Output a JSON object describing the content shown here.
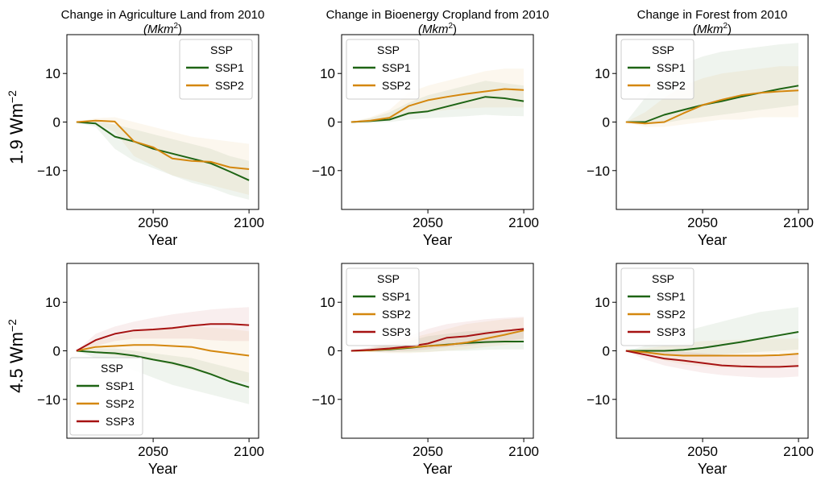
{
  "colors": {
    "SSP1": "#1e6414",
    "SSP2": "#d4870e",
    "SSP3": "#a61212"
  },
  "row_labels": [
    {
      "base": "1.9 Wm",
      "sup": "−2"
    },
    {
      "base": "4.5 Wm",
      "sup": "−2"
    }
  ],
  "chart_data": [
    {
      "type": "line",
      "title": "Change in Agriculture Land from 2010",
      "title_unit": {
        "base": "(Mkm",
        "sup": "2",
        "tail": ")"
      },
      "xlabel": "Year",
      "ylabel": "",
      "xlim": [
        2005,
        2105
      ],
      "ylim": [
        -18,
        18
      ],
      "xticks": [
        2050,
        2100
      ],
      "yticks": [
        10,
        0,
        -10
      ],
      "legend": {
        "title": "SSP",
        "position": "upper-right"
      },
      "x": [
        2010,
        2020,
        2030,
        2040,
        2050,
        2060,
        2070,
        2080,
        2090,
        2100
      ],
      "series": [
        {
          "name": "SSP1",
          "values": [
            0,
            -0.3,
            -3.0,
            -4.0,
            -5.5,
            -6.5,
            -7.5,
            -8.5,
            -10.2,
            -12.0
          ],
          "band": {
            "upper": [
              0,
              0.2,
              -0.5,
              -1.5,
              -2.5,
              -3.5,
              -4.5,
              -5.5,
              -7.0,
              -8.0
            ],
            "lower": [
              0,
              -1.0,
              -5.5,
              -8.0,
              -9.5,
              -11.0,
              -12.5,
              -13.5,
              -15.0,
              -16.0
            ]
          }
        },
        {
          "name": "SSP2",
          "values": [
            0,
            0.3,
            0.1,
            -4.0,
            -5.2,
            -7.5,
            -8.0,
            -8.2,
            -9.3,
            -9.7
          ],
          "band": {
            "upper": [
              0,
              0.8,
              1.0,
              0.0,
              -1.0,
              -2.0,
              -3.0,
              -3.5,
              -4.0,
              -4.5
            ],
            "lower": [
              0,
              -0.3,
              -2.0,
              -7.0,
              -9.0,
              -11.0,
              -12.0,
              -13.0,
              -14.0,
              -15.0
            ]
          }
        }
      ]
    },
    {
      "type": "line",
      "title": "Change in Bioenergy Cropland from 2010",
      "title_unit": {
        "base": "(Mkm",
        "sup": "2",
        "tail": ")"
      },
      "xlabel": "Year",
      "ylabel": "",
      "xlim": [
        2005,
        2105
      ],
      "ylim": [
        -18,
        18
      ],
      "xticks": [
        2050,
        2100
      ],
      "yticks": [
        10,
        0,
        -10
      ],
      "legend": {
        "title": "SSP",
        "position": "upper-left"
      },
      "x": [
        2010,
        2020,
        2030,
        2040,
        2050,
        2060,
        2070,
        2080,
        2090,
        2100
      ],
      "series": [
        {
          "name": "SSP1",
          "values": [
            0,
            0.2,
            0.5,
            1.8,
            2.2,
            3.2,
            4.2,
            5.2,
            4.9,
            4.3
          ],
          "band": {
            "upper": [
              0,
              0.8,
              2.0,
              4.0,
              5.5,
              6.5,
              7.5,
              8.5,
              8.0,
              7.5
            ],
            "lower": [
              0,
              -0.2,
              0.0,
              0.5,
              0.8,
              1.0,
              1.2,
              1.5,
              1.3,
              1.2
            ]
          }
        },
        {
          "name": "SSP2",
          "values": [
            0,
            0.3,
            0.9,
            3.3,
            4.5,
            5.2,
            5.8,
            6.3,
            6.8,
            6.6
          ],
          "band": {
            "upper": [
              0,
              1.0,
              2.5,
              6.0,
              7.5,
              8.5,
              9.5,
              10.5,
              11.0,
              11.0
            ],
            "lower": [
              0,
              0.0,
              0.3,
              1.5,
              2.0,
              2.5,
              2.8,
              3.0,
              3.0,
              3.0
            ]
          }
        }
      ]
    },
    {
      "type": "line",
      "title": "Change in Forest from 2010",
      "title_unit": {
        "base": "(Mkm",
        "sup": "2",
        "tail": ")"
      },
      "xlabel": "Year",
      "ylabel": "",
      "xlim": [
        2005,
        2105
      ],
      "ylim": [
        -18,
        18
      ],
      "xticks": [
        2050,
        2100
      ],
      "yticks": [
        10,
        0,
        -10
      ],
      "legend": {
        "title": "SSP",
        "position": "upper-left"
      },
      "x": [
        2010,
        2020,
        2030,
        2040,
        2050,
        2060,
        2070,
        2080,
        2090,
        2100
      ],
      "series": [
        {
          "name": "SSP1",
          "values": [
            0,
            0.0,
            1.5,
            2.5,
            3.5,
            4.3,
            5.2,
            6.0,
            6.8,
            7.5
          ],
          "band": {
            "upper": [
              0,
              5.0,
              10.0,
              12.0,
              13.5,
              14.5,
              15.0,
              15.5,
              16.0,
              16.3
            ],
            "lower": [
              0,
              -0.5,
              -0.2,
              0.5,
              1.0,
              1.5,
              2.0,
              2.5,
              3.0,
              3.5
            ]
          }
        },
        {
          "name": "SSP2",
          "values": [
            0,
            -0.3,
            0.0,
            1.8,
            3.5,
            4.6,
            5.5,
            6.0,
            6.3,
            6.5
          ],
          "band": {
            "upper": [
              0,
              2.0,
              5.0,
              7.5,
              9.0,
              10.0,
              10.5,
              11.0,
              11.5,
              11.5
            ],
            "lower": [
              0,
              -1.0,
              -1.0,
              -0.5,
              0.0,
              0.5,
              0.5,
              1.0,
              1.0,
              1.0
            ]
          }
        }
      ]
    },
    {
      "type": "line",
      "title": "",
      "xlabel": "Year",
      "ylabel": "",
      "xlim": [
        2005,
        2105
      ],
      "ylim": [
        -18,
        18
      ],
      "xticks": [
        2050,
        2100
      ],
      "yticks": [
        10,
        0,
        -10
      ],
      "legend": {
        "title": "SSP",
        "position": "lower-left"
      },
      "x": [
        2010,
        2020,
        2030,
        2040,
        2050,
        2060,
        2070,
        2080,
        2090,
        2100
      ],
      "series": [
        {
          "name": "SSP1",
          "values": [
            0,
            -0.3,
            -0.5,
            -1.0,
            -1.8,
            -2.5,
            -3.5,
            -4.8,
            -6.3,
            -7.5
          ],
          "band": {
            "upper": [
              0,
              0.5,
              0.5,
              0.0,
              -0.5,
              -1.0,
              -1.5,
              -2.5,
              -3.5,
              -4.5
            ],
            "lower": [
              0,
              -1.5,
              -2.5,
              -4.0,
              -5.5,
              -7.0,
              -8.0,
              -9.0,
              -10.0,
              -11.0
            ]
          }
        },
        {
          "name": "SSP2",
          "values": [
            0,
            0.8,
            1.0,
            1.2,
            1.2,
            1.0,
            0.8,
            0.0,
            -0.5,
            -1.0
          ],
          "band": {
            "upper": [
              0,
              2.0,
              3.0,
              4.0,
              4.5,
              5.0,
              5.0,
              4.8,
              4.5,
              4.0
            ],
            "lower": [
              0,
              -0.5,
              -1.0,
              -1.5,
              -2.0,
              -3.0,
              -4.0,
              -5.0,
              -6.0,
              -6.5
            ]
          }
        },
        {
          "name": "SSP3",
          "values": [
            0,
            2.2,
            3.5,
            4.2,
            4.4,
            4.7,
            5.2,
            5.5,
            5.5,
            5.3
          ],
          "band": {
            "upper": [
              0,
              3.5,
              5.0,
              6.0,
              6.8,
              7.5,
              8.0,
              8.5,
              8.8,
              9.0
            ],
            "lower": [
              0,
              1.0,
              2.0,
              2.5,
              2.5,
              2.5,
              2.5,
              2.2,
              2.0,
              2.0
            ]
          }
        }
      ]
    },
    {
      "type": "line",
      "title": "",
      "xlabel": "Year",
      "ylabel": "",
      "xlim": [
        2005,
        2105
      ],
      "ylim": [
        -18,
        18
      ],
      "xticks": [
        2050,
        2100
      ],
      "yticks": [
        10,
        0,
        -10
      ],
      "legend": {
        "title": "SSP",
        "position": "upper-left"
      },
      "x": [
        2010,
        2020,
        2030,
        2040,
        2050,
        2060,
        2070,
        2080,
        2090,
        2100
      ],
      "series": [
        {
          "name": "SSP1",
          "values": [
            0,
            0.1,
            0.3,
            0.6,
            1.0,
            1.3,
            1.6,
            1.8,
            1.9,
            1.9
          ],
          "band": {
            "upper": [
              0,
              0.5,
              1.2,
              2.0,
              3.0,
              3.5,
              4.0,
              4.2,
              4.3,
              4.3
            ],
            "lower": [
              0,
              -0.2,
              -0.3,
              -0.3,
              -0.2,
              0.0,
              0.0,
              0.2,
              0.3,
              0.3
            ]
          }
        },
        {
          "name": "SSP2",
          "values": [
            0,
            0.1,
            0.4,
            0.7,
            1.0,
            1.2,
            1.7,
            2.5,
            3.3,
            4.2
          ],
          "band": {
            "upper": [
              0,
              0.6,
              1.5,
              2.5,
              3.5,
              4.5,
              5.5,
              6.0,
              6.5,
              6.8
            ],
            "lower": [
              0,
              -0.3,
              -0.5,
              -0.5,
              -0.3,
              0.0,
              0.3,
              0.8,
              1.2,
              1.8
            ]
          }
        },
        {
          "name": "SSP3",
          "values": [
            0,
            0.2,
            0.5,
            0.9,
            1.5,
            2.7,
            3.0,
            3.6,
            4.1,
            4.5
          ],
          "band": {
            "upper": [
              0,
              0.8,
              1.8,
              3.0,
              4.5,
              5.5,
              6.0,
              6.5,
              6.8,
              7.0
            ],
            "lower": [
              0,
              -0.2,
              -0.2,
              0.0,
              0.3,
              0.8,
              1.0,
              1.5,
              2.0,
              2.5
            ]
          }
        }
      ]
    },
    {
      "type": "line",
      "title": "",
      "xlabel": "Year",
      "ylabel": "",
      "xlim": [
        2005,
        2105
      ],
      "ylim": [
        -18,
        18
      ],
      "xticks": [
        2050,
        2100
      ],
      "yticks": [
        10,
        0,
        -10
      ],
      "legend": {
        "title": "SSP",
        "position": "upper-left"
      },
      "x": [
        2010,
        2020,
        2030,
        2040,
        2050,
        2060,
        2070,
        2080,
        2090,
        2100
      ],
      "series": [
        {
          "name": "SSP1",
          "values": [
            0,
            0.0,
            0.0,
            0.2,
            0.6,
            1.2,
            1.8,
            2.5,
            3.2,
            3.9
          ],
          "band": {
            "upper": [
              0,
              1.0,
              2.5,
              4.0,
              5.0,
              6.0,
              7.0,
              8.0,
              8.5,
              9.0
            ],
            "lower": [
              0,
              -0.5,
              -1.0,
              -1.0,
              -1.0,
              -0.8,
              -0.5,
              -0.2,
              0.0,
              0.3
            ]
          }
        },
        {
          "name": "SSP2",
          "values": [
            0,
            -0.3,
            -0.8,
            -1.0,
            -1.0,
            -1.0,
            -1.0,
            -1.0,
            -0.9,
            -0.6
          ],
          "band": {
            "upper": [
              0,
              0.5,
              1.0,
              1.5,
              2.0,
              2.2,
              2.3,
              2.5,
              2.5,
              2.5
            ],
            "lower": [
              0,
              -1.0,
              -2.0,
              -2.8,
              -3.2,
              -3.5,
              -3.6,
              -3.6,
              -3.5,
              -3.3
            ]
          }
        },
        {
          "name": "SSP3",
          "values": [
            0,
            -0.8,
            -1.6,
            -2.0,
            -2.5,
            -3.0,
            -3.2,
            -3.3,
            -3.3,
            -3.1
          ],
          "band": {
            "upper": [
              0,
              0.2,
              0.0,
              -0.2,
              -0.5,
              -0.8,
              -1.0,
              -1.0,
              -0.8,
              -0.5
            ],
            "lower": [
              0,
              -1.8,
              -3.0,
              -3.8,
              -4.5,
              -5.0,
              -5.3,
              -5.5,
              -5.5,
              -5.3
            ]
          }
        }
      ]
    }
  ]
}
